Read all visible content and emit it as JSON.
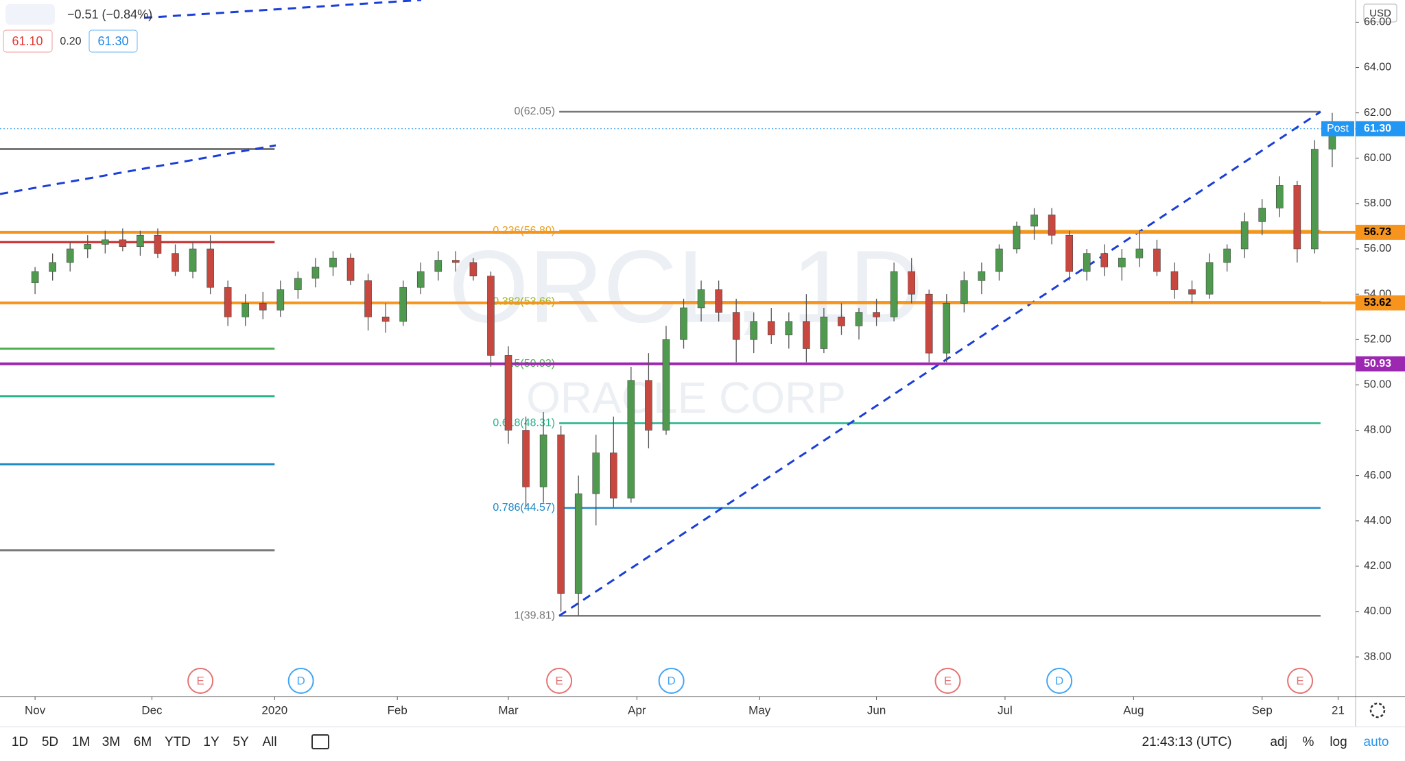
{
  "header": {
    "change": "−0.51 (−0.84%)",
    "bid": "61.10",
    "spread": "0.20",
    "ask": "61.30",
    "currency": "USD",
    "watermark": "ORCL, 1D",
    "watermark_name": "ORACLE CORP"
  },
  "toolbar": {
    "ranges": [
      "1D",
      "5D",
      "1M",
      "3M",
      "6M",
      "YTD",
      "1Y",
      "5Y",
      "All"
    ],
    "clock": "21:43:13 (UTC)",
    "options": [
      "adj",
      "%",
      "log",
      "auto"
    ]
  },
  "chart_data": {
    "type": "candlestick",
    "x": [
      0,
      3,
      6,
      9,
      12,
      15,
      18,
      21,
      24,
      27,
      30,
      33,
      36,
      39,
      42,
      45,
      48,
      51,
      54,
      57,
      60,
      63,
      66,
      69,
      72,
      75,
      78,
      81,
      84,
      87,
      90,
      93,
      96,
      99,
      102,
      105,
      108,
      111,
      114,
      117,
      120,
      123,
      126,
      129,
      132,
      135,
      138,
      141,
      144,
      147,
      150,
      153,
      156,
      159,
      162,
      165,
      168,
      171,
      174,
      177,
      180,
      183,
      186,
      189,
      192,
      195,
      198,
      201,
      204,
      207,
      210,
      213,
      216,
      219,
      222
    ],
    "open": [
      54.5,
      55.0,
      55.4,
      56.0,
      56.2,
      56.4,
      56.1,
      56.6,
      55.8,
      55.0,
      56.0,
      54.3,
      53.0,
      53.6,
      53.3,
      54.2,
      54.7,
      55.2,
      55.6,
      54.6,
      53.0,
      52.8,
      54.3,
      55.0,
      55.5,
      55.4,
      54.8,
      51.3,
      48.0,
      45.5,
      47.8,
      40.8,
      45.2,
      47.0,
      45.0,
      50.2,
      48.0,
      52.0,
      53.4,
      54.2,
      53.2,
      52.0,
      52.8,
      52.2,
      52.8,
      51.6,
      53.0,
      52.6,
      53.2,
      53.0,
      55.0,
      54.0,
      51.4,
      53.6,
      54.6,
      55.0,
      56.0,
      57.0,
      57.5,
      56.6,
      55.0,
      55.8,
      55.2,
      55.6,
      56.0,
      55.0,
      54.2,
      54.0,
      55.4,
      56.0,
      57.2,
      57.8,
      58.8,
      56.0,
      60.4
    ],
    "high": [
      55.2,
      55.8,
      56.3,
      56.6,
      56.8,
      56.9,
      56.8,
      56.9,
      56.2,
      56.3,
      56.6,
      54.6,
      54.0,
      54.1,
      54.6,
      55.0,
      55.6,
      55.9,
      55.8,
      54.9,
      53.6,
      54.6,
      55.4,
      55.9,
      55.9,
      55.6,
      55.0,
      51.7,
      48.6,
      48.8,
      48.2,
      46.0,
      47.8,
      48.6,
      50.8,
      51.4,
      52.6,
      53.8,
      54.6,
      54.6,
      53.8,
      53.2,
      53.4,
      53.2,
      54.0,
      53.4,
      53.6,
      53.4,
      53.8,
      55.4,
      55.6,
      54.2,
      54.0,
      55.0,
      55.4,
      56.2,
      57.2,
      57.8,
      57.8,
      56.8,
      56.0,
      56.2,
      56.0,
      56.8,
      56.4,
      55.4,
      54.6,
      55.8,
      56.2,
      57.6,
      58.2,
      59.2,
      59.0,
      60.8,
      62.0
    ],
    "low": [
      54.0,
      54.6,
      55.0,
      55.6,
      55.8,
      55.9,
      55.7,
      55.6,
      54.8,
      54.7,
      54.0,
      52.6,
      52.6,
      52.9,
      53.0,
      53.8,
      54.3,
      54.8,
      54.4,
      52.4,
      52.3,
      52.6,
      54.0,
      54.6,
      55.0,
      54.6,
      50.8,
      47.4,
      44.6,
      44.8,
      40.0,
      39.8,
      43.8,
      44.6,
      44.8,
      47.2,
      47.8,
      51.6,
      52.8,
      52.8,
      51.0,
      51.4,
      51.8,
      51.6,
      51.0,
      51.4,
      52.2,
      52.0,
      52.6,
      52.8,
      53.6,
      51.0,
      51.0,
      53.2,
      54.0,
      54.6,
      55.8,
      56.4,
      56.2,
      54.6,
      54.6,
      54.8,
      54.6,
      55.2,
      54.8,
      53.8,
      53.6,
      53.8,
      55.0,
      55.6,
      56.6,
      57.4,
      55.4,
      55.8,
      59.6
    ],
    "close": [
      55.0,
      55.4,
      56.0,
      56.2,
      56.4,
      56.1,
      56.6,
      55.8,
      55.0,
      56.0,
      54.3,
      53.0,
      53.6,
      53.3,
      54.2,
      54.7,
      55.2,
      55.6,
      54.6,
      53.0,
      52.8,
      54.3,
      55.0,
      55.5,
      55.4,
      54.8,
      51.3,
      48.0,
      45.5,
      47.8,
      40.8,
      45.2,
      47.0,
      45.0,
      50.2,
      48.0,
      52.0,
      53.4,
      54.2,
      53.2,
      52.0,
      52.8,
      52.2,
      52.8,
      51.6,
      53.0,
      52.6,
      53.2,
      53.0,
      55.0,
      54.0,
      51.4,
      53.6,
      54.6,
      55.0,
      56.0,
      57.0,
      57.5,
      56.6,
      55.0,
      55.8,
      55.2,
      55.6,
      56.0,
      55.0,
      54.2,
      54.0,
      55.4,
      56.0,
      57.2,
      57.8,
      58.8,
      56.0,
      60.4,
      61.3
    ],
    "up_color": "#4f9a4f",
    "down_color": "#c8473f",
    "xlim": [
      -6,
      226
    ],
    "xticks": [
      {
        "value": 0,
        "label": "Nov"
      },
      {
        "value": 20,
        "label": "Dec"
      },
      {
        "value": 41,
        "label": "2020"
      },
      {
        "value": 62,
        "label": "Feb"
      },
      {
        "value": 81,
        "label": "Mar"
      },
      {
        "value": 103,
        "label": "Apr"
      },
      {
        "value": 124,
        "label": "May"
      },
      {
        "value": 144,
        "label": "Jun"
      },
      {
        "value": 166,
        "label": "Jul"
      },
      {
        "value": 188,
        "label": "Aug"
      },
      {
        "value": 210,
        "label": "Sep"
      },
      {
        "value": 223,
        "label": "21"
      }
    ],
    "ylim": [
      36.25,
      66.98
    ],
    "yticks": [
      {
        "value": 38,
        "label": "38.00"
      },
      {
        "value": 40,
        "label": "40.00"
      },
      {
        "value": 42,
        "label": "42.00"
      },
      {
        "value": 44,
        "label": "44.00"
      },
      {
        "value": 46,
        "label": "46.00"
      },
      {
        "value": 48,
        "label": "48.00"
      },
      {
        "value": 50,
        "label": "50.00"
      },
      {
        "value": 52,
        "label": "52.00"
      },
      {
        "value": 54,
        "label": "54.00"
      },
      {
        "value": 56,
        "label": "56.00"
      },
      {
        "value": 58,
        "label": "58.00"
      },
      {
        "value": 60,
        "label": "60.00"
      },
      {
        "value": 62,
        "label": "62.00"
      },
      {
        "value": 64,
        "label": "64.00"
      },
      {
        "value": 66,
        "label": "66.00"
      }
    ],
    "fib_start": 89.7,
    "fib_end": 220,
    "fib_levels": [
      {
        "label": "0(62.05)",
        "value": 62.05,
        "color": "#787878"
      },
      {
        "label": "0.236(56.80)",
        "value": 56.8,
        "color": "#e8a020"
      },
      {
        "label": "0.382(53.66)",
        "value": 53.66,
        "color": "#9bb51e"
      },
      {
        "label": "0.5(50.93)",
        "value": 50.93,
        "color": "#4caf50"
      },
      {
        "label": "0.618(48.31)",
        "value": 48.31,
        "color": "#26b48a"
      },
      {
        "label": "0.786(44.57)",
        "value": 44.57,
        "color": "#1e88c8"
      },
      {
        "label": "1(39.81)",
        "value": 39.81,
        "color": "#787878"
      }
    ],
    "price_lines": [
      {
        "value": 56.73,
        "label": "56.73",
        "color": "#f7941d"
      },
      {
        "value": 53.62,
        "label": "53.62",
        "color": "#f7941d"
      },
      {
        "value": 50.93,
        "label": "50.93",
        "color": "#9c27b0"
      }
    ],
    "last_price": {
      "value": 61.3,
      "label": "61.30",
      "tag": "Post",
      "color": "#2196f3"
    },
    "left_lines": [
      {
        "value": 60.4,
        "color": "#787878"
      },
      {
        "value": 56.3,
        "color": "#c62828"
      },
      {
        "value": 51.6,
        "color": "#4caf50"
      },
      {
        "value": 49.5,
        "color": "#26b48a"
      },
      {
        "value": 46.5,
        "color": "#1e88c8"
      },
      {
        "value": 42.7,
        "color": "#787878"
      }
    ],
    "left_lines_end": 41,
    "events": [
      {
        "x": 28.3,
        "label": "E"
      },
      {
        "x": 45.5,
        "label": "D"
      },
      {
        "x": 89.7,
        "label": "E"
      },
      {
        "x": 108.9,
        "label": "D"
      },
      {
        "x": 156.2,
        "label": "E"
      },
      {
        "x": 175.3,
        "label": "D"
      },
      {
        "x": 216.5,
        "label": "E"
      }
    ]
  }
}
